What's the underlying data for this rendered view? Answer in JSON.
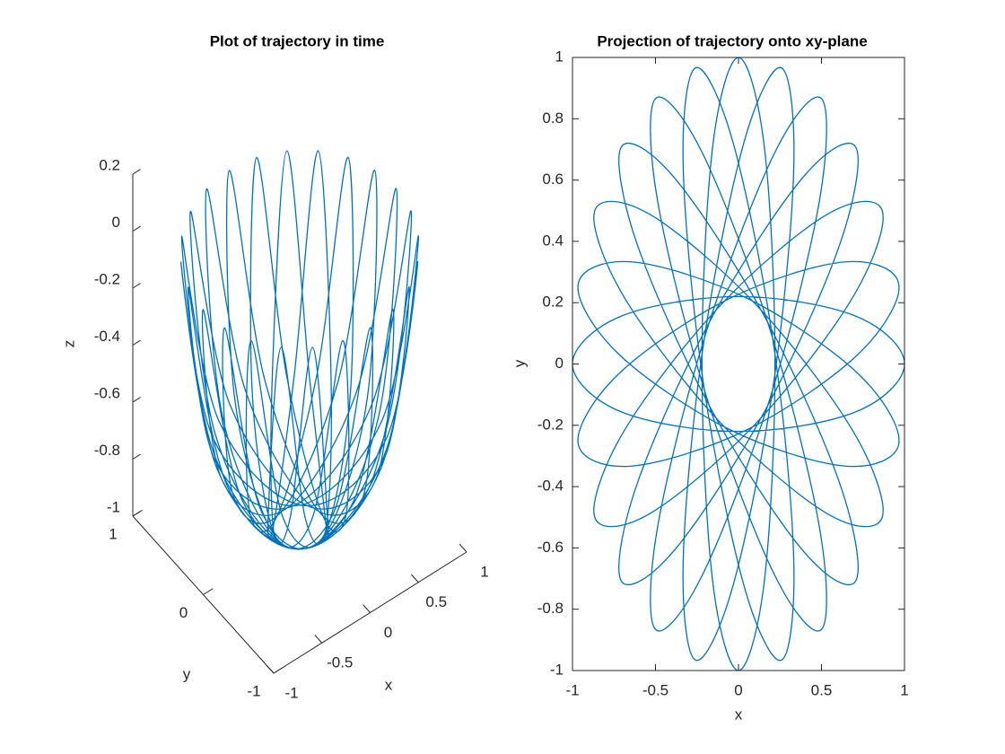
{
  "chart_data": [
    {
      "type": "line3d",
      "title": "Plot of trajectory in time",
      "xlabel": "x",
      "ylabel": "y",
      "zlabel": "z",
      "color": "#0072bd",
      "xlim": [
        -1,
        1
      ],
      "ylim": [
        -1,
        1
      ],
      "zlim": [
        -1,
        0.2
      ],
      "xticks": [
        -1,
        -0.5,
        0,
        0.5,
        1
      ],
      "yticks": [
        -1,
        0,
        1
      ],
      "zticks": [
        -1,
        -0.8,
        -0.6,
        -0.4,
        -0.2,
        0,
        0.2
      ],
      "x": [
        1,
        0.707,
        0,
        -0.707,
        -1,
        -0.707,
        0,
        0.707,
        1,
        null,
        0.966,
        0.643,
        -0.057,
        -0.723,
        -0.966,
        -0.643,
        0.057,
        0.723,
        0.966,
        null,
        0.866,
        0.534,
        -0.11,
        -0.69,
        -0.866,
        -0.534,
        0.11,
        0.69,
        0.866,
        null,
        0.707,
        0.39,
        -0.156,
        -0.61,
        -0.707,
        -0.39,
        0.156,
        0.61,
        0.707,
        null,
        0.5,
        0.219,
        -0.191,
        -0.488,
        -0.5,
        -0.219,
        0.191,
        0.488,
        0.5,
        null,
        0.259,
        0.033,
        -0.213,
        -0.333,
        -0.259,
        -0.033,
        0.213,
        0.333,
        0.259,
        null,
        0,
        -0.156,
        -0.22,
        -0.156,
        0,
        0.156,
        0.22,
        0.156,
        0,
        null,
        -0.259,
        -0.333,
        -0.213,
        0.033,
        0.259,
        0.333,
        0.213,
        -0.033,
        -0.259,
        null,
        -0.5,
        -0.488,
        -0.191,
        0.219,
        0.5,
        0.488,
        0.191,
        -0.219,
        -0.5,
        null,
        -0.707,
        -0.61,
        -0.156,
        0.39,
        0.707,
        0.61,
        0.156,
        -0.39,
        -0.707,
        null,
        -0.866,
        -0.69,
        -0.11,
        0.534,
        0.866,
        0.69,
        0.11,
        -0.534,
        -0.866,
        null,
        -0.966,
        -0.723,
        -0.057,
        0.643,
        0.966,
        0.723,
        0.057,
        -0.643,
        -0.966
      ],
      "y": [
        0,
        0.156,
        0.22,
        0.156,
        0,
        -0.156,
        -0.22,
        -0.156,
        0,
        null,
        0.259,
        0.333,
        0.213,
        -0.033,
        -0.259,
        -0.333,
        -0.213,
        0.033,
        0.259,
        null,
        0.5,
        0.488,
        0.191,
        -0.219,
        -0.5,
        -0.488,
        -0.191,
        0.219,
        0.5,
        null,
        0.707,
        0.61,
        0.156,
        -0.39,
        -0.707,
        -0.61,
        -0.156,
        0.39,
        0.707,
        null,
        0.866,
        0.69,
        0.11,
        -0.534,
        -0.866,
        -0.69,
        -0.11,
        0.534,
        0.866,
        null,
        0.966,
        0.723,
        0.057,
        -0.643,
        -0.966,
        -0.723,
        -0.057,
        0.643,
        0.966,
        null,
        1,
        0.707,
        0,
        -0.707,
        -1,
        -0.707,
        0,
        0.707,
        1,
        null,
        0.966,
        0.643,
        -0.057,
        -0.723,
        -0.966,
        -0.643,
        0.057,
        0.723,
        0.966,
        null,
        0.866,
        0.534,
        -0.11,
        -0.69,
        -0.866,
        -0.534,
        0.11,
        0.69,
        0.866,
        null,
        0.707,
        0.39,
        -0.156,
        -0.61,
        -0.707,
        -0.39,
        0.156,
        0.61,
        0.707,
        null,
        0.5,
        0.219,
        -0.191,
        -0.488,
        -0.5,
        -0.219,
        0.191,
        0.488,
        0.5,
        null,
        0.259,
        0.033,
        -0.213,
        -0.333,
        -0.259,
        -0.033,
        0.213,
        0.333,
        0.259
      ],
      "z": [
        0,
        -0.69,
        -0.976,
        -0.69,
        0,
        -0.69,
        -0.976,
        -0.69,
        0,
        null,
        0,
        -0.69,
        -0.976,
        -0.69,
        0,
        -0.69,
        -0.976,
        -0.69,
        0,
        null,
        0,
        -0.69,
        -0.976,
        -0.69,
        0,
        -0.69,
        -0.976,
        -0.69,
        0,
        null,
        0,
        -0.69,
        -0.976,
        -0.69,
        0,
        -0.69,
        -0.976,
        -0.69,
        0,
        null,
        0,
        -0.69,
        -0.976,
        -0.69,
        0,
        -0.69,
        -0.976,
        -0.69,
        0,
        null,
        0,
        -0.69,
        -0.976,
        -0.69,
        0,
        -0.69,
        -0.976,
        -0.69,
        0,
        null,
        0,
        -0.69,
        -0.976,
        -0.69,
        0,
        -0.69,
        -0.976,
        -0.69,
        0,
        null,
        0,
        -0.69,
        -0.976,
        -0.69,
        0,
        -0.69,
        -0.976,
        -0.69,
        0,
        null,
        0,
        -0.69,
        -0.976,
        -0.69,
        0,
        -0.69,
        -0.976,
        -0.69,
        0,
        null,
        0,
        -0.69,
        -0.976,
        -0.69,
        0,
        -0.69,
        -0.976,
        -0.69,
        0,
        null,
        0,
        -0.69,
        -0.976,
        -0.69,
        0,
        -0.69,
        -0.976,
        -0.69,
        0,
        null,
        0,
        -0.69,
        -0.976,
        -0.69,
        0,
        -0.69,
        -0.976,
        -0.69,
        0
      ]
    },
    {
      "type": "line",
      "title": "Projection of trajectory onto xy-plane",
      "xlabel": "x",
      "ylabel": "y",
      "color": "#0072bd",
      "box": true,
      "xlim": [
        -1,
        1
      ],
      "ylim": [
        -1,
        1
      ],
      "xticks": [
        -1,
        -0.5,
        0,
        0.5,
        1
      ],
      "yticks": [
        -1,
        -0.8,
        -0.6,
        -0.4,
        -0.2,
        0,
        0.2,
        0.4,
        0.6,
        0.8,
        1
      ],
      "x": [
        1,
        0.707,
        0,
        -0.707,
        -1,
        -0.707,
        0,
        0.707,
        1,
        null,
        0.966,
        0.643,
        -0.057,
        -0.723,
        -0.966,
        -0.643,
        0.057,
        0.723,
        0.966,
        null,
        0.866,
        0.534,
        -0.11,
        -0.69,
        -0.866,
        -0.534,
        0.11,
        0.69,
        0.866,
        null,
        0.707,
        0.39,
        -0.156,
        -0.61,
        -0.707,
        -0.39,
        0.156,
        0.61,
        0.707,
        null,
        0.5,
        0.219,
        -0.191,
        -0.488,
        -0.5,
        -0.219,
        0.191,
        0.488,
        0.5,
        null,
        0.259,
        0.033,
        -0.213,
        -0.333,
        -0.259,
        -0.033,
        0.213,
        0.333,
        0.259,
        null,
        0,
        -0.156,
        -0.22,
        -0.156,
        0,
        0.156,
        0.22,
        0.156,
        0,
        null,
        -0.259,
        -0.333,
        -0.213,
        0.033,
        0.259,
        0.333,
        0.213,
        -0.033,
        -0.259,
        null,
        -0.5,
        -0.488,
        -0.191,
        0.219,
        0.5,
        0.488,
        0.191,
        -0.219,
        -0.5,
        null,
        -0.707,
        -0.61,
        -0.156,
        0.39,
        0.707,
        0.61,
        0.156,
        -0.39,
        -0.707,
        null,
        -0.866,
        -0.69,
        -0.11,
        0.534,
        0.866,
        0.69,
        0.11,
        -0.534,
        -0.866,
        null,
        -0.966,
        -0.723,
        -0.057,
        0.643,
        0.966,
        0.723,
        0.057,
        -0.643,
        -0.966
      ],
      "y": [
        0,
        0.156,
        0.22,
        0.156,
        0,
        -0.156,
        -0.22,
        -0.156,
        0,
        null,
        0.259,
        0.333,
        0.213,
        -0.033,
        -0.259,
        -0.333,
        -0.213,
        0.033,
        0.259,
        null,
        0.5,
        0.488,
        0.191,
        -0.219,
        -0.5,
        -0.488,
        -0.191,
        0.219,
        0.5,
        null,
        0.707,
        0.61,
        0.156,
        -0.39,
        -0.707,
        -0.61,
        -0.156,
        0.39,
        0.707,
        null,
        0.866,
        0.69,
        0.11,
        -0.534,
        -0.866,
        -0.69,
        -0.11,
        0.534,
        0.866,
        null,
        0.966,
        0.723,
        0.057,
        -0.643,
        -0.966,
        -0.723,
        -0.057,
        0.643,
        0.966,
        null,
        1,
        0.707,
        0,
        -0.707,
        -1,
        -0.707,
        0,
        0.707,
        1,
        null,
        0.966,
        0.643,
        -0.057,
        -0.723,
        -0.966,
        -0.643,
        0.057,
        0.723,
        0.966,
        null,
        0.866,
        0.534,
        -0.11,
        -0.69,
        -0.866,
        -0.534,
        0.11,
        0.69,
        0.866,
        null,
        0.707,
        0.39,
        -0.156,
        -0.61,
        -0.707,
        -0.39,
        0.156,
        0.61,
        0.707,
        null,
        0.5,
        0.219,
        -0.191,
        -0.488,
        -0.5,
        -0.219,
        0.191,
        0.488,
        0.5,
        null,
        0.259,
        0.033,
        -0.213,
        -0.333,
        -0.259,
        -0.033,
        0.213,
        0.333,
        0.259
      ]
    }
  ]
}
